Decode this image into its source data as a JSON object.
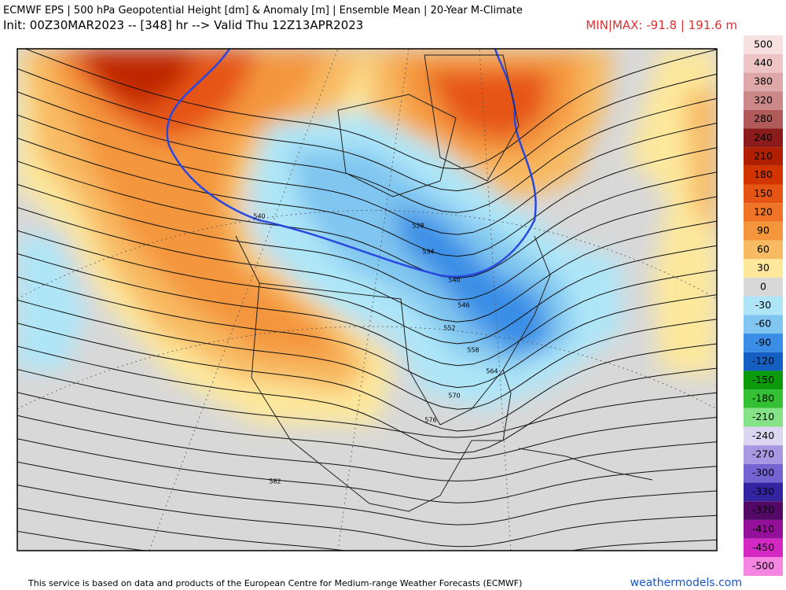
{
  "header": {
    "title": "ECMWF EPS | 500 hPa Geopotential Height [dm] & Anomaly [m] | Ensemble Mean | 20-Year M-Climate",
    "init": "Init: 00Z30MAR2023 -- [348] hr --> Valid Thu 12Z13APR2023",
    "minmax": "MIN|MAX: -91.8 | 191.6 m"
  },
  "colorbar": {
    "labels": [
      500,
      440,
      380,
      320,
      280,
      240,
      210,
      180,
      150,
      120,
      90,
      60,
      30,
      0,
      -30,
      -60,
      -90,
      -120,
      -150,
      -180,
      -210,
      -240,
      -270,
      -300,
      -330,
      -370,
      -410,
      -450,
      -500
    ],
    "colors": [
      "#f7e0e0",
      "#eec4c4",
      "#dfa8a8",
      "#cc8888",
      "#b05a5a",
      "#8c1c1c",
      "#b02000",
      "#d23400",
      "#e65414",
      "#ef7426",
      "#f4963c",
      "#f8ba62",
      "#fde89c",
      "#d8d8d8",
      "#aee6f8",
      "#80c6f0",
      "#3a8ee6",
      "#1460c2",
      "#0a9a0a",
      "#34c034",
      "#86e286",
      "#ddd6f2",
      "#a898e2",
      "#7464d2",
      "#3424a2",
      "#520864",
      "#94109a",
      "#d428c4",
      "#f486e2"
    ]
  },
  "map": {
    "contour_labels": [
      540,
      528,
      534,
      540,
      546,
      552,
      558,
      564,
      570,
      576,
      582
    ]
  },
  "footer": {
    "credit": "This service is based on data and products of the European Centre for Medium-range Weather Forecasts (ECMWF)",
    "site": "weathermodels.com"
  }
}
